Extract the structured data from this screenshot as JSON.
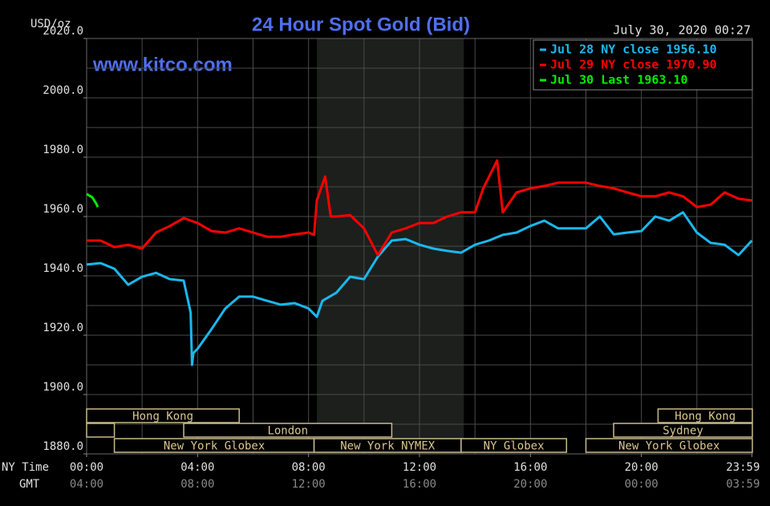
{
  "chart_data": {
    "type": "line",
    "title": "24 Hour Spot Gold (Bid)",
    "y_label": "USD/oz",
    "timestamp": "July 30, 2020 00:27",
    "watermark": "www.kitco.com",
    "x_label": "NY Time",
    "x2_label": "GMT",
    "xlim": [
      0,
      24
    ],
    "xticks": [
      {
        "value": 0,
        "label": "00:00"
      },
      {
        "value": 4,
        "label": "04:00"
      },
      {
        "value": 8,
        "label": "08:00"
      },
      {
        "value": 12,
        "label": "12:00"
      },
      {
        "value": 16,
        "label": "16:00"
      },
      {
        "value": 20,
        "label": "20:00"
      },
      {
        "value": 23.983,
        "label": "23:59"
      }
    ],
    "x2ticks": [
      {
        "value": 0,
        "label": "04:00"
      },
      {
        "value": 4,
        "label": "08:00"
      },
      {
        "value": 8,
        "label": "12:00"
      },
      {
        "value": 12,
        "label": "16:00"
      },
      {
        "value": 16,
        "label": "20:00"
      },
      {
        "value": 20,
        "label": "00:00"
      },
      {
        "value": 23.983,
        "label": "03:59"
      }
    ],
    "xgrid": [
      2,
      4,
      6,
      8,
      10,
      12,
      14,
      16,
      18,
      20,
      22
    ],
    "ylim": [
      1880,
      2020
    ],
    "yticks": [
      {
        "value": 1880,
        "label": "1880.0"
      },
      {
        "value": 1900,
        "label": "1900.0"
      },
      {
        "value": 1920,
        "label": "1920.0"
      },
      {
        "value": 1940,
        "label": "1940.0"
      },
      {
        "value": 1960,
        "label": "1960.0"
      },
      {
        "value": 1980,
        "label": "1980.0"
      },
      {
        "value": 2000,
        "label": "2000.0"
      },
      {
        "value": 2020,
        "label": "2020.0"
      }
    ],
    "ygrid": [
      1890,
      1900,
      1910,
      1920,
      1930,
      1940,
      1950,
      1960,
      1970,
      1980,
      1990,
      2000,
      2010
    ],
    "highlight": [
      8.3,
      13.6
    ],
    "sessions": [
      [
        {
          "name": "Hong Kong",
          "start": 0,
          "end": 5.5
        },
        {
          "name": "Hong Kong",
          "start": 20.6,
          "end": 24
        }
      ],
      [
        {
          "name": null,
          "start": 0,
          "end": 1
        },
        {
          "name": "London",
          "start": 3.5,
          "end": 11
        },
        {
          "name": "Sydney",
          "start": 19,
          "end": 24
        }
      ],
      [
        {
          "name": "New York Globex",
          "start": 1,
          "end": 8.2
        },
        {
          "name": "New York NYMEX",
          "start": 8.2,
          "end": 13.5
        },
        {
          "name": "NY Globex",
          "start": 13.5,
          "end": 17.3
        },
        {
          "name": "New York Globex",
          "start": 18,
          "end": 24
        }
      ]
    ],
    "series": [
      {
        "name": "Jul 28 NY close 1956.10",
        "color": "#1ab8ee",
        "x": [
          0,
          0.5,
          1,
          1.5,
          2,
          2.5,
          3,
          3.5,
          3.75,
          3.8,
          3.85,
          4,
          4.5,
          5,
          5.5,
          6,
          6.5,
          7,
          7.5,
          8,
          8.3,
          8.5,
          9,
          9.5,
          10,
          10.5,
          11,
          11.5,
          12,
          12.5,
          13,
          13.5,
          14,
          14.5,
          15,
          15.5,
          16,
          16.5,
          17,
          17.5,
          18,
          18.5,
          19,
          19.5,
          20,
          20.5,
          21,
          21.5,
          22,
          22.5,
          23,
          23.5,
          23.983
        ],
        "values": [
          1943.8,
          1944.3,
          1942.4,
          1937,
          1939.7,
          1941,
          1938.9,
          1938.4,
          1927.6,
          1910,
          1914,
          1915.4,
          1922,
          1929,
          1933,
          1933,
          1931.6,
          1930.3,
          1930.8,
          1929,
          1926.2,
          1931.6,
          1934.3,
          1939.7,
          1938.9,
          1946.5,
          1951.9,
          1952.4,
          1950.5,
          1949.2,
          1948.4,
          1947.8,
          1950.5,
          1951.9,
          1953.8,
          1954.6,
          1956.8,
          1958.6,
          1956,
          1956,
          1956,
          1960,
          1954,
          1954.6,
          1955.1,
          1960,
          1958.6,
          1961.4,
          1954.6,
          1951.1,
          1950.5,
          1947,
          1951.9
        ]
      },
      {
        "name": "Jul 29 NY close 1970.90",
        "color": "#ff0000",
        "x": [
          0,
          0.5,
          1,
          1.5,
          2,
          2.5,
          3,
          3.5,
          4,
          4.5,
          5,
          5.5,
          6,
          6.5,
          7,
          7.5,
          8,
          8.2,
          8.3,
          8.6,
          8.8,
          9,
          9.5,
          10,
          10.5,
          11,
          11.5,
          12,
          12.5,
          13,
          13.5,
          14,
          14.3,
          14.8,
          15,
          15.5,
          16,
          16.5,
          17,
          17.5,
          18,
          18.5,
          19,
          19.5,
          20,
          20.5,
          21,
          21.5,
          22,
          22.5,
          23,
          23.5,
          23.983
        ],
        "values": [
          1951.9,
          1951.9,
          1949.7,
          1950.5,
          1949.2,
          1954.6,
          1956.8,
          1959.5,
          1957.8,
          1955.1,
          1954.6,
          1956,
          1954.6,
          1953.2,
          1953.2,
          1954,
          1954.6,
          1953.8,
          1965.4,
          1973.5,
          1960,
          1960,
          1960.5,
          1956,
          1947,
          1954.6,
          1956,
          1957.8,
          1957.8,
          1960,
          1961.4,
          1961.4,
          1969.5,
          1978.9,
          1961.4,
          1968.1,
          1969.5,
          1970.3,
          1971.4,
          1971.4,
          1971.4,
          1970.3,
          1969.5,
          1968.1,
          1966.8,
          1966.8,
          1968.1,
          1966.8,
          1963.2,
          1964,
          1968.1,
          1966,
          1965.4
        ]
      },
      {
        "name": "Jul 30 Last 1963.10",
        "color": "#00ee00",
        "x": [
          0,
          0.2,
          0.35,
          0.4
        ],
        "values": [
          1967.6,
          1966.5,
          1964.3,
          1963.2
        ]
      }
    ]
  }
}
